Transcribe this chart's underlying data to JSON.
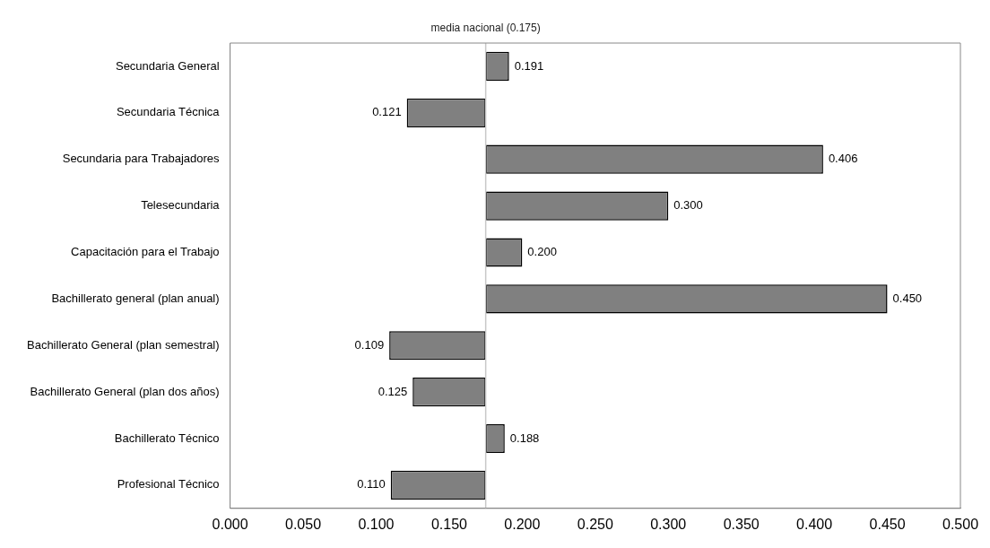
{
  "chart_data": {
    "type": "bar",
    "orientation": "horizontal",
    "categories": [
      "Secundaria General",
      "Secundaria Técnica",
      "Secundaria para Trabajadores",
      "Telesecundaria",
      "Capacitación para el Trabajo",
      "Bachillerato general (plan anual)",
      "Bachillerato General (plan semestral)",
      "Bachillerato General (plan dos años)",
      "Bachillerato Técnico",
      "Profesional Técnico"
    ],
    "base": [
      0.175,
      0.175,
      0.175,
      0.175,
      0.175,
      0.175,
      0.175,
      0.175,
      0.175,
      0.175
    ],
    "values": [
      0.016,
      -0.054,
      0.231,
      0.125,
      0.025,
      0.275,
      -0.066,
      -0.05,
      0.013,
      -0.065
    ],
    "value_labels": [
      "0.191",
      "0.121",
      "0.406",
      "0.300",
      "0.200",
      "0.450",
      "0.109",
      "0.125",
      "0.188",
      "0.110"
    ],
    "color": "#808080",
    "xlim": [
      0,
      0.5
    ],
    "xticks": [
      {
        "value": 0,
        "label": "0.000"
      },
      {
        "value": 0.05,
        "label": "0.050"
      },
      {
        "value": 0.1,
        "label": "0.100"
      },
      {
        "value": 0.15,
        "label": "0.150"
      },
      {
        "value": 0.2,
        "label": "0.200"
      },
      {
        "value": 0.25,
        "label": "0.250"
      },
      {
        "value": 0.3,
        "label": "0.300"
      },
      {
        "value": 0.35,
        "label": "0.350"
      },
      {
        "value": 0.4,
        "label": "0.400"
      },
      {
        "value": 0.45,
        "label": "0.450"
      },
      {
        "value": 0.5,
        "label": "0.500"
      }
    ],
    "ref_lines": [
      {
        "axis": "x",
        "value": 0.175,
        "label": "media nacional (0.175)",
        "color": "#c8c8c8"
      }
    ],
    "grid": false,
    "legend": false
  }
}
